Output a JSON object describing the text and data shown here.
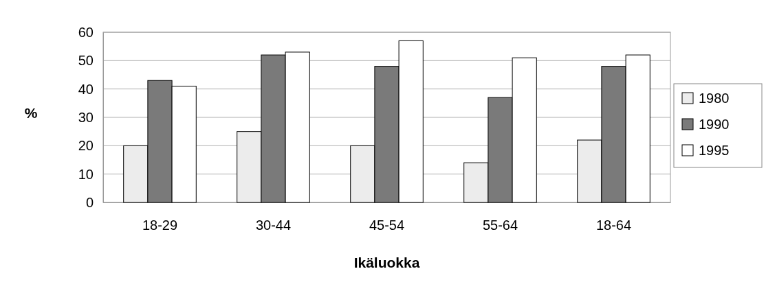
{
  "chart_data": {
    "type": "bar",
    "xlabel": "Ikäluokka",
    "ylabel": "%",
    "categories": [
      "18-29",
      "30-44",
      "45-54",
      "55-64",
      "18-64"
    ],
    "series": [
      {
        "name": "1980",
        "color": "#ececec",
        "values": [
          20,
          25,
          20,
          14,
          22
        ]
      },
      {
        "name": "1990",
        "color": "#7a7a7a",
        "values": [
          43,
          52,
          48,
          37,
          48
        ]
      },
      {
        "name": "1995",
        "color": "#ffffff",
        "values": [
          41,
          53,
          57,
          51,
          52
        ]
      }
    ],
    "ylim": [
      0,
      60
    ],
    "yticks": [
      0,
      10,
      20,
      30,
      40,
      50,
      60
    ],
    "grid": "y",
    "legend": "right"
  }
}
